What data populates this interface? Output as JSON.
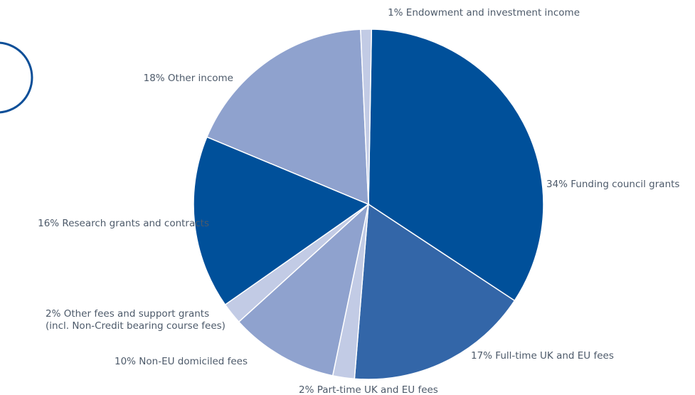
{
  "chart_data": {
    "type": "pie",
    "start_angle_deg": 1,
    "direction": "clockwise",
    "slices": [
      {
        "label": "Funding council grants",
        "value": 34,
        "display": "34% Funding council grants",
        "color": "#00509a"
      },
      {
        "label": "Full-time UK and EU fees",
        "value": 17,
        "display": "17% Full-time UK and EU fees",
        "color": "#3366a8"
      },
      {
        "label": "Part-time UK and EU fees",
        "value": 2,
        "display": "2% Part-time UK and EU fees",
        "color": "#c2cbe5"
      },
      {
        "label": "Non-EU domiciled fees",
        "value": 10,
        "display": "10% Non-EU domiciled fees",
        "color": "#8fa2ce"
      },
      {
        "label": "Other fees and support grants (incl. Non-Credit bearing course fees)",
        "value": 2,
        "display": [
          "2% Other fees and support grants",
          "(incl. Non-Credit bearing course fees)"
        ],
        "color": "#c2cbe5"
      },
      {
        "label": "Research grants and contracts",
        "value": 16,
        "display": "16% Research grants and contracts",
        "color": "#00509a"
      },
      {
        "label": "Other income",
        "value": 18,
        "display": "18% Other income",
        "color": "#8fa2ce"
      },
      {
        "label": "Endowment and investment income",
        "value": 1,
        "display": "1% Endowment and investment income",
        "color": "#c2cbe5"
      }
    ]
  }
}
